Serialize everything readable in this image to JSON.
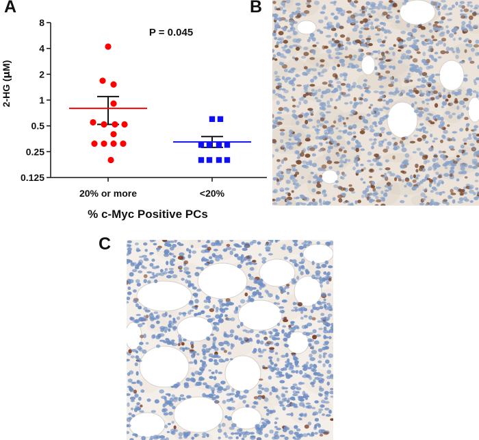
{
  "panels": {
    "a": "A",
    "b": "B",
    "c": "C"
  },
  "chart_data": {
    "type": "scatter",
    "scale_y": "log2",
    "ylabel_prefix": "2-HG (",
    "ylabel_mu": "μ",
    "ylabel_suffix": "M)",
    "xlabel": "% c-Myc Positive PCs",
    "annotation": "P = 0.045",
    "y_ticks": [
      8,
      4,
      2,
      1,
      0.5,
      0.25,
      0.125
    ],
    "y_tick_labels": [
      "8",
      "4",
      "2",
      "1",
      "0.5",
      "0.25",
      "0.125"
    ],
    "ylim": [
      0.125,
      8
    ],
    "categories": [
      "20% or more",
      "<20%"
    ],
    "grid": false,
    "legend": "none",
    "groups": [
      {
        "category": "20% or more",
        "color": "#ff0000",
        "marker": "circle",
        "mean": 0.8,
        "sem_low": 0.52,
        "sem_high": 1.1,
        "values": [
          4.2,
          1.68,
          1.52,
          0.91,
          0.55,
          0.52,
          0.52,
          0.52,
          0.4,
          0.31,
          0.31,
          0.31,
          0.31,
          0.2
        ]
      },
      {
        "category": "<20%",
        "color": "#1010ee",
        "marker": "square",
        "mean": 0.325,
        "sem_low": 0.28,
        "sem_high": 0.375,
        "values": [
          0.6,
          0.6,
          0.3,
          0.3,
          0.3,
          0.3,
          0.2,
          0.2,
          0.2,
          0.2
        ]
      }
    ]
  },
  "micrographs": {
    "b": {
      "stain": "c-Myc IHC",
      "background": "#ece4da",
      "nuclei_brown": "#7a4a30",
      "nuclei_blue": "#8aa3c9"
    },
    "c": {
      "stain": "c-Myc IHC",
      "background": "#f4efe9",
      "nuclei_brown": "#7a3a20",
      "nuclei_blue": "#6f8fc4"
    }
  }
}
